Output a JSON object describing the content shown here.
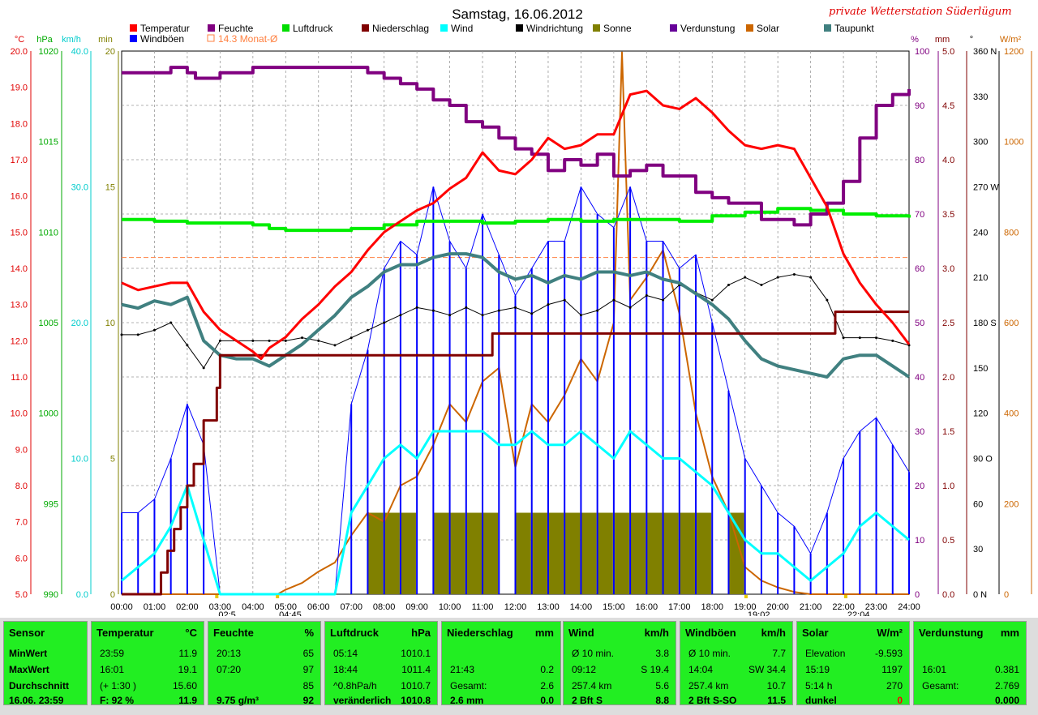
{
  "title": "Samstag, 16.06.2012",
  "station": "private Wetterstation Süderlügum",
  "legend": [
    {
      "label": "Temperatur",
      "color": "#ff0000"
    },
    {
      "label": "Feuchte",
      "color": "#800080"
    },
    {
      "label": "Luftdruck",
      "color": "#00dd00"
    },
    {
      "label": "Niederschlag",
      "color": "#800000"
    },
    {
      "label": "Wind",
      "color": "#00ffff"
    },
    {
      "label": "Windrichtung",
      "color": "#000000"
    },
    {
      "label": "Sonne",
      "color": "#808000"
    },
    {
      "label": "Verdunstung",
      "color": "#660099"
    },
    {
      "label": "Solar",
      "color": "#cc6600"
    },
    {
      "label": "Taupunkt",
      "color": "#408080"
    },
    {
      "label": "Windböen",
      "color": "#0000ff"
    },
    {
      "label": "14.3 Monat-Ø",
      "color": "#ff8040"
    }
  ],
  "axes": {
    "units_left": [
      "°C",
      "hPa",
      "km/h",
      "min"
    ],
    "units_right": [
      "%",
      "mm",
      "°",
      "W/m²"
    ],
    "temp_ticks": [
      "20.0",
      "19.0",
      "18.0",
      "17.0",
      "16.0",
      "15.0",
      "14.0",
      "13.0",
      "12.0",
      "11.0",
      "10.0",
      "9.0",
      "8.0",
      "7.0",
      "6.0",
      "5.0"
    ],
    "press_ticks": [
      "1020",
      "1015",
      "1010",
      "1005",
      "1000",
      "995",
      "990"
    ],
    "wind_ticks": [
      "40.0",
      "30.0",
      "20.0",
      "10.0",
      "0.0"
    ],
    "min_ticks": [
      "20",
      "15",
      "10",
      "5",
      "0"
    ],
    "hum_ticks": [
      "100",
      "90",
      "80",
      "70",
      "60",
      "50",
      "40",
      "30",
      "20",
      "10",
      "0"
    ],
    "mm_ticks": [
      "5.0",
      "4.5",
      "4.0",
      "3.5",
      "3.0",
      "2.5",
      "2.0",
      "1.5",
      "1.0",
      "0.5",
      "0.0"
    ],
    "dir_ticks": [
      "360 N",
      "330",
      "300",
      "270 W",
      "240",
      "210",
      "180 S",
      "150",
      "120",
      "90  O",
      "60",
      "30",
      "0    N"
    ],
    "solar_ticks": [
      "1200",
      "1000",
      "800",
      "600",
      "400",
      "200",
      "0"
    ],
    "time_ticks": [
      "00:00",
      "01:00",
      "02:00",
      "03:00",
      "04:00",
      "05:00",
      "06:00",
      "07:00",
      "08:00",
      "09:00",
      "10:00",
      "11:00",
      "12:00",
      "13:00",
      "14:00",
      "15:00",
      "16:00",
      "17:00",
      "18:00",
      "19:00",
      "20:00",
      "21:00",
      "22:00",
      "23:00",
      "24:00"
    ],
    "markers": [
      "02:5",
      "04:45",
      "19:02",
      "22:04"
    ]
  },
  "chart_data": {
    "type": "line",
    "title": "Samstag, 16.06.2012",
    "x_unit": "hour",
    "series": [
      {
        "name": "Temperatur",
        "unit": "°C",
        "x": [
          0,
          0.5,
          1,
          1.5,
          2,
          2.5,
          3,
          3.5,
          4,
          4.25,
          4.5,
          5,
          5.5,
          6,
          6.5,
          7,
          7.5,
          8,
          8.5,
          9,
          9.5,
          10,
          10.5,
          11,
          11.5,
          12,
          12.5,
          13,
          13.5,
          14,
          14.5,
          15,
          15.5,
          16,
          16.5,
          17,
          17.5,
          18,
          18.5,
          19,
          19.5,
          20,
          20.5,
          21,
          21.5,
          22,
          22.5,
          23,
          23.5,
          24
        ],
        "values": [
          13.6,
          13.4,
          13.5,
          13.6,
          13.6,
          12.8,
          12.3,
          12.0,
          11.7,
          11.5,
          11.8,
          12.1,
          12.6,
          13.0,
          13.5,
          13.9,
          14.5,
          15.0,
          15.3,
          15.6,
          15.8,
          16.2,
          16.5,
          17.2,
          16.7,
          16.6,
          17.0,
          17.6,
          17.3,
          17.4,
          17.7,
          17.7,
          18.8,
          18.9,
          18.5,
          18.4,
          18.7,
          18.3,
          17.8,
          17.4,
          17.3,
          17.4,
          17.3,
          16.5,
          15.7,
          14.4,
          13.6,
          13.0,
          12.5,
          11.9
        ]
      },
      {
        "name": "Feuchte",
        "unit": "%",
        "x": [
          0,
          1,
          1.5,
          2,
          2.25,
          3,
          4,
          5,
          6,
          7,
          7.5,
          8,
          8.5,
          9,
          9.5,
          10,
          10.5,
          11,
          11.5,
          12,
          12.5,
          13,
          13.5,
          14,
          14.5,
          15,
          15.5,
          16,
          16.5,
          17,
          17.5,
          18,
          18.5,
          19,
          19.5,
          20,
          20.5,
          21,
          21.5,
          22,
          22.5,
          23,
          23.5,
          24
        ],
        "values": [
          96,
          96,
          97,
          96,
          95,
          96,
          97,
          97,
          97,
          97,
          96,
          95,
          94,
          93,
          91,
          90,
          87,
          86,
          84,
          82,
          81,
          78,
          80,
          79,
          81,
          77,
          78,
          79,
          77,
          77,
          74,
          73,
          72,
          72,
          69,
          69,
          68,
          70,
          72,
          76,
          84,
          90,
          92,
          93
        ]
      },
      {
        "name": "Luftdruck",
        "unit": "hPa",
        "x": [
          0,
          1,
          2,
          3,
          4,
          4.5,
          5,
          6,
          7,
          8,
          9,
          10,
          11,
          12,
          13,
          14,
          15,
          16,
          17,
          18,
          19,
          20,
          21,
          22,
          23,
          24
        ],
        "values": [
          1010.7,
          1010.6,
          1010.5,
          1010.5,
          1010.4,
          1010.2,
          1010.1,
          1010.1,
          1010.2,
          1010.4,
          1010.6,
          1010.6,
          1010.5,
          1010.6,
          1010.7,
          1010.6,
          1010.7,
          1010.7,
          1010.6,
          1010.9,
          1011.1,
          1011.3,
          1011.2,
          1011.0,
          1010.9,
          1010.8
        ]
      },
      {
        "name": "Niederschlag",
        "unit": "mm",
        "x": [
          0,
          1,
          1.2,
          1.4,
          1.6,
          1.8,
          2,
          2.2,
          2.5,
          2.9,
          3,
          11.25,
          11.3,
          21.7,
          21.75,
          24
        ],
        "values": [
          0,
          0,
          0.2,
          0.4,
          0.6,
          0.8,
          1.0,
          1.2,
          1.6,
          1.9,
          2.2,
          2.2,
          2.4,
          2.4,
          2.6,
          2.6
        ]
      },
      {
        "name": "Taupunkt",
        "unit": "°C",
        "x": [
          0,
          0.5,
          1,
          1.5,
          2,
          2.5,
          3,
          3.5,
          4,
          4.5,
          5,
          5.5,
          6,
          6.5,
          7,
          7.5,
          8,
          8.5,
          9,
          9.5,
          10,
          10.5,
          11,
          11.5,
          12,
          12.5,
          13,
          13.5,
          14,
          14.5,
          15,
          15.5,
          16,
          16.5,
          17,
          17.5,
          18,
          18.5,
          19,
          19.5,
          20,
          20.5,
          21,
          21.5,
          22,
          22.5,
          23,
          23.5,
          24
        ],
        "values": [
          13.0,
          12.9,
          13.1,
          13.0,
          13.2,
          12.0,
          11.6,
          11.5,
          11.5,
          11.3,
          11.6,
          11.9,
          12.3,
          12.7,
          13.2,
          13.5,
          13.9,
          14.1,
          14.1,
          14.3,
          14.4,
          14.4,
          14.3,
          13.9,
          13.7,
          13.8,
          13.6,
          13.8,
          13.7,
          13.9,
          13.9,
          13.8,
          13.9,
          13.7,
          13.6,
          13.3,
          13.0,
          12.6,
          12.0,
          11.5,
          11.3,
          11.2,
          11.1,
          11.0,
          11.5,
          11.6,
          11.6,
          11.3,
          11.0
        ]
      },
      {
        "name": "Windrichtung",
        "unit": "°",
        "x": [
          0,
          0.5,
          1,
          1.5,
          2,
          2.5,
          3,
          3.5,
          4,
          4.5,
          5,
          5.5,
          6,
          6.5,
          7,
          7.5,
          8,
          8.5,
          9,
          9.5,
          10,
          10.5,
          11,
          11.5,
          12,
          12.5,
          13,
          13.5,
          14,
          14.5,
          15,
          15.5,
          16,
          16.5,
          17,
          17.5,
          18,
          18.5,
          19,
          19.5,
          20,
          20.5,
          21,
          21.5,
          22,
          22.5,
          23,
          23.5,
          24
        ],
        "values": [
          172,
          172,
          175,
          180,
          165,
          150,
          168,
          168,
          168,
          168,
          168,
          170,
          168,
          165,
          170,
          175,
          180,
          185,
          190,
          188,
          185,
          190,
          185,
          188,
          190,
          186,
          192,
          195,
          185,
          188,
          195,
          190,
          198,
          195,
          205,
          200,
          195,
          205,
          210,
          205,
          210,
          212,
          210,
          195,
          170,
          170,
          170,
          168,
          165
        ]
      },
      {
        "name": "Wind",
        "unit": "km/h",
        "x": [
          0,
          0.5,
          1,
          1.5,
          2,
          2.5,
          3,
          3.5,
          4,
          4.5,
          5,
          5.5,
          6,
          6.5,
          7,
          7.5,
          8,
          8.5,
          9,
          9.5,
          10,
          10.5,
          11,
          11.5,
          12,
          12.5,
          13,
          13.5,
          14,
          14.5,
          15,
          15.5,
          16,
          16.5,
          17,
          17.5,
          18,
          18.5,
          19,
          19.5,
          20,
          20.5,
          21,
          21.5,
          22,
          22.5,
          23,
          23.5,
          24
        ],
        "values": [
          1,
          2,
          3,
          5,
          8,
          4,
          0,
          0,
          0,
          0,
          0,
          0,
          0,
          0,
          6,
          8,
          10,
          11,
          10,
          12,
          12,
          12,
          12,
          11,
          11,
          12,
          11,
          11,
          12,
          11,
          10,
          12,
          11,
          10,
          10,
          9,
          8,
          6,
          4,
          3,
          3,
          2,
          1,
          2,
          3,
          5,
          6,
          5,
          4
        ]
      },
      {
        "name": "Windböen",
        "unit": "km/h",
        "x": [
          0,
          0.5,
          1,
          1.5,
          2,
          2.5,
          3,
          3.5,
          4,
          4.5,
          5,
          5.5,
          6,
          6.5,
          7,
          7.5,
          8,
          8.5,
          9,
          9.5,
          10,
          10.5,
          11,
          11.5,
          12,
          12.5,
          13,
          13.5,
          14,
          14.5,
          15,
          15.5,
          16,
          16.5,
          17,
          17.5,
          18,
          18.5,
          19,
          19.5,
          20,
          20.5,
          21,
          21.5,
          22,
          22.5,
          23,
          23.5,
          24
        ],
        "values": [
          6,
          6,
          7,
          10,
          14,
          11,
          0,
          0,
          0,
          0,
          0,
          0,
          0,
          0,
          14,
          18,
          24,
          26,
          25,
          30,
          26,
          24,
          28,
          25,
          22,
          24,
          26,
          26,
          30,
          28,
          27,
          30,
          26,
          26,
          24,
          25,
          20,
          15,
          10,
          8,
          6,
          5,
          3,
          6,
          10,
          12,
          13,
          11,
          9
        ]
      },
      {
        "name": "Solar",
        "unit": "W/m²",
        "x": [
          0,
          4,
          4.75,
          5,
          5.5,
          6,
          6.5,
          7,
          7.5,
          8,
          8.5,
          9,
          9.5,
          10,
          10.5,
          11,
          11.5,
          12,
          12.5,
          13,
          13.5,
          14,
          14.5,
          15,
          15.25,
          15.5,
          16,
          16.5,
          17,
          17.5,
          18,
          18.5,
          19,
          19.5,
          20,
          20.5,
          21,
          21.5,
          22,
          24
        ],
        "values": [
          0,
          0,
          0,
          10,
          25,
          50,
          70,
          130,
          180,
          160,
          240,
          260,
          330,
          420,
          380,
          470,
          500,
          280,
          420,
          380,
          440,
          520,
          470,
          600,
          1197,
          650,
          700,
          760,
          620,
          400,
          260,
          180,
          60,
          30,
          15,
          5,
          0,
          0,
          0,
          0
        ]
      },
      {
        "name": "Sonne",
        "unit": "min",
        "x": [
          7.0,
          7.5,
          8.0,
          8.5,
          9.0,
          9.5,
          10.0,
          10.5,
          11.0,
          11.5,
          12.0,
          12.5,
          13.0,
          13.5,
          14.0,
          14.5,
          15.0,
          15.5,
          16.0,
          16.5,
          17.0,
          17.5,
          18.0,
          18.5,
          19.0
        ],
        "values": [
          0,
          1,
          1,
          1,
          0,
          1,
          1,
          1,
          1,
          0,
          1,
          1,
          1,
          1,
          1,
          1,
          1,
          1,
          1,
          1,
          1,
          1,
          0,
          1,
          0
        ]
      }
    ],
    "month_avg_temp": 14.3,
    "xlim": [
      0,
      24
    ],
    "temp_ylim": [
      5,
      20
    ],
    "pressure_ylim": [
      990,
      1020
    ],
    "wind_ylim": [
      0,
      40
    ],
    "humidity_ylim": [
      0,
      100
    ],
    "precip_ylim": [
      0,
      5
    ],
    "dir_ylim": [
      0,
      360
    ],
    "solar_ylim": [
      0,
      1200
    ],
    "sun_ylim": [
      0,
      20
    ],
    "grid": true
  },
  "panel": {
    "sensor": {
      "header": "Sensor",
      "rows": [
        "MinWert",
        "MaxWert",
        "Durchschnitt",
        "16.06. 23:59"
      ]
    },
    "temp": {
      "header": "Temperatur",
      "unit": "°C",
      "rows": [
        [
          "23:59",
          "11.9"
        ],
        [
          "16:01",
          "19.1"
        ],
        [
          "(+ 1:30 )",
          "15.60"
        ],
        [
          "F: 92 %",
          "11.9"
        ]
      ]
    },
    "hum": {
      "header": "Feuchte",
      "unit": "%",
      "rows": [
        [
          "20:13",
          "65"
        ],
        [
          "07:20",
          "97"
        ],
        [
          "",
          "85"
        ],
        [
          "9.75 g/m³",
          "92"
        ]
      ]
    },
    "press": {
      "header": "Luftdruck",
      "unit": "hPa",
      "rows": [
        [
          "05:14",
          "1010.1"
        ],
        [
          "18:44",
          "1011.4"
        ],
        [
          "^0.8hPa/h",
          "1010.7"
        ],
        [
          "veränderlich",
          "1010.8"
        ]
      ]
    },
    "rain": {
      "header": "Niederschlag",
      "unit": "mm",
      "rows": [
        [
          "",
          ""
        ],
        [
          "21:43",
          "0.2"
        ],
        [
          "Gesamt:",
          "2.6"
        ],
        [
          "2.6 mm",
          "0.0"
        ]
      ]
    },
    "wind": {
      "header": "Wind",
      "unit": "km/h",
      "rows": [
        [
          "Ø 10 min.",
          "3.8"
        ],
        [
          "09:12",
          "S 19.4"
        ],
        [
          "257.4 km",
          "5.6"
        ],
        [
          "2 Bft S",
          "8.8"
        ]
      ]
    },
    "gust": {
      "header": "Windböen",
      "unit": "km/h",
      "rows": [
        [
          "Ø 10 min.",
          "7.7"
        ],
        [
          "14:04",
          "SW 34.4"
        ],
        [
          "257.4 km",
          "10.7"
        ],
        [
          "2 Bft S-SO",
          "11.5"
        ]
      ]
    },
    "solar": {
      "header": "Solar",
      "unit": "W/m²",
      "rows": [
        [
          "Elevation",
          "-9.593"
        ],
        [
          "15:19",
          "1197"
        ],
        [
          "5:14 h",
          "270"
        ],
        [
          "dunkel",
          "0"
        ]
      ]
    },
    "evap": {
      "header": "Verdunstung",
      "unit": "mm",
      "rows": [
        [
          "",
          ""
        ],
        [
          "16:01",
          "0.381"
        ],
        [
          "Gesamt:",
          "2.769"
        ],
        [
          "",
          "0.000"
        ]
      ]
    }
  }
}
